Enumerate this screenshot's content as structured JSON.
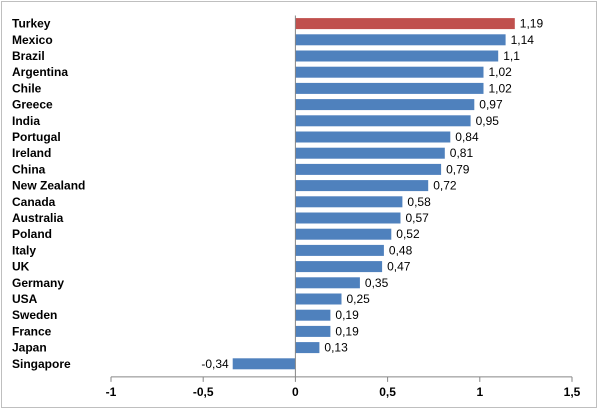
{
  "chart_data": {
    "type": "bar",
    "orientation": "horizontal",
    "categories": [
      "Turkey",
      "Mexico",
      "Brazil",
      "Argentina",
      "Chile",
      "Greece",
      "India",
      "Portugal",
      "Ireland",
      "China",
      "New Zealand",
      "Canada",
      "Australia",
      "Poland",
      "Italy",
      "UK",
      "Germany",
      "USA",
      "Sweden",
      "France",
      "Japan",
      "Singapore"
    ],
    "values": [
      1.19,
      1.14,
      1.1,
      1.02,
      1.02,
      0.97,
      0.95,
      0.84,
      0.81,
      0.79,
      0.72,
      0.58,
      0.57,
      0.52,
      0.48,
      0.47,
      0.35,
      0.25,
      0.19,
      0.19,
      0.13,
      -0.34
    ],
    "value_labels": [
      "1,19",
      "1,14",
      "1,1",
      "1,02",
      "1,02",
      "0,97",
      "0,95",
      "0,84",
      "0,81",
      "0,79",
      "0,72",
      "0,58",
      "0,57",
      "0,52",
      "0,48",
      "0,47",
      "0,35",
      "0,25",
      "0,19",
      "0,19",
      "0,13",
      "-0,34"
    ],
    "xlim": [
      -1,
      1.5
    ],
    "xticks": [
      -1,
      -0.5,
      0,
      0.5,
      1,
      1.5
    ],
    "xtick_labels": [
      "-1",
      "-0,5",
      "0",
      "0,5",
      "1",
      "1,5"
    ],
    "colors": {
      "default": "#4f81bd",
      "highlight": "#c0504d",
      "axis": "#868686"
    },
    "highlight_index": 0,
    "grid": false,
    "legend": "none"
  }
}
